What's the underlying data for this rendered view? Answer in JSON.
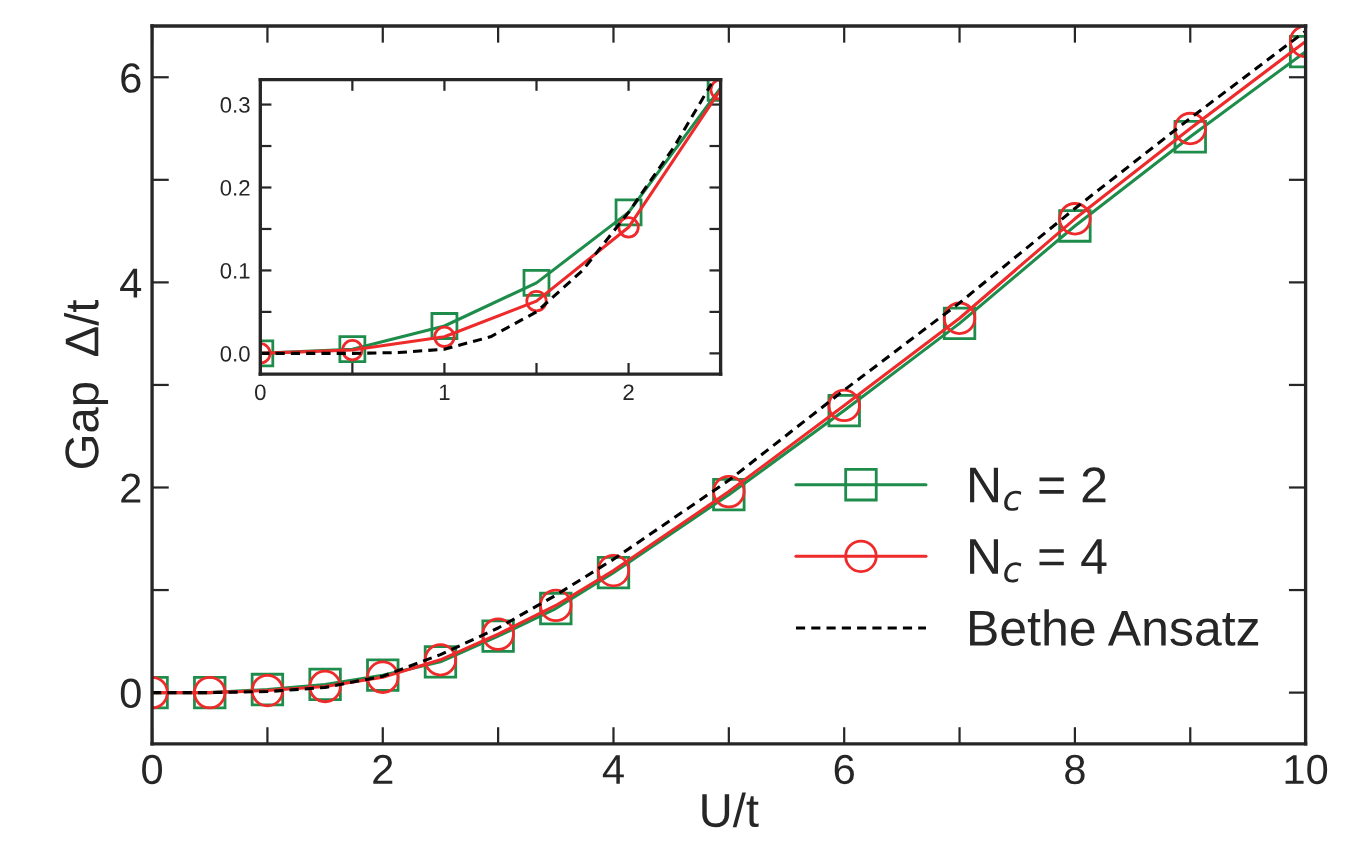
{
  "chart_data": [
    {
      "type": "line",
      "xlabel": "U/t",
      "ylabel": "Gap  Δ/t",
      "xlim": [
        0,
        10
      ],
      "ylim": [
        -0.5,
        6.5
      ],
      "xticks": [
        0,
        {
          "value": 1,
          "label": null
        },
        2,
        {
          "value": 3,
          "label": null
        },
        4,
        {
          "value": 5,
          "label": null
        },
        6,
        {
          "value": 7,
          "label": null
        },
        8,
        {
          "value": 9,
          "label": null
        },
        10
      ],
      "yticks": [
        0,
        {
          "value": 1,
          "label": null
        },
        2,
        {
          "value": 3,
          "label": null
        },
        4,
        {
          "value": 5,
          "label": null
        },
        6
      ],
      "grid": false,
      "legend": "bottom right",
      "series": [
        {
          "name": "N$_{c}$ = 2",
          "color": "#1e8c4a",
          "marker": "square",
          "line_style": "solid",
          "x": [
            0,
            0.5,
            1,
            1.5,
            2,
            2.5,
            3,
            3.5,
            4,
            5,
            6,
            7,
            8,
            9,
            10
          ],
          "values": [
            0,
            0,
            0.03,
            0.08,
            0.17,
            0.3,
            0.55,
            0.82,
            1.17,
            1.93,
            2.75,
            3.6,
            4.55,
            5.42,
            6.25
          ]
        },
        {
          "name": "N$_{c}$ = 4",
          "color": "#ee2a2a",
          "marker": "circle",
          "line_style": "solid",
          "x": [
            0,
            0.5,
            1,
            1.5,
            2,
            2.5,
            3,
            3.5,
            4,
            5,
            6,
            7,
            8,
            9,
            10
          ],
          "values": [
            0,
            0,
            0.02,
            0.06,
            0.15,
            0.32,
            0.57,
            0.85,
            1.19,
            1.96,
            2.8,
            3.65,
            4.62,
            5.5,
            6.35
          ]
        },
        {
          "name": "Bethe Ansatz",
          "color": "#000000",
          "marker": "none",
          "line_style": "dashed",
          "x": [
            0,
            0.5,
            1,
            1.5,
            2,
            2.5,
            3,
            3.5,
            4,
            5,
            6,
            7,
            8,
            9,
            10
          ],
          "values": [
            0,
            0,
            0.01,
            0.05,
            0.16,
            0.37,
            0.63,
            0.95,
            1.3,
            2.07,
            2.95,
            3.8,
            4.72,
            5.6,
            6.45
          ]
        }
      ]
    },
    {
      "type": "line",
      "xlim": [
        0,
        2.5
      ],
      "ylim": [
        -0.025,
        0.33
      ],
      "xticks": [
        0,
        {
          "value": 0.5,
          "label": null
        },
        1,
        {
          "value": 1.5,
          "label": null
        },
        2
      ],
      "yticks": [
        {
          "value": 0,
          "label": "0.0"
        },
        {
          "value": 0.05,
          "label": null
        },
        0.1,
        {
          "value": 0.15,
          "label": null
        },
        0.2,
        {
          "value": 0.25,
          "label": null
        },
        0.3
      ],
      "grid": false,
      "legend": false,
      "series": [
        {
          "color": "#1e8c4a",
          "marker": "square",
          "line_style": "solid",
          "x": [
            0,
            0.5,
            1,
            1.5,
            2,
            2.5
          ],
          "values": [
            0,
            0.005,
            0.033,
            0.085,
            0.17,
            0.32
          ]
        },
        {
          "color": "#ee2a2a",
          "marker": "circle",
          "line_style": "solid",
          "x": [
            0,
            0.5,
            1,
            1.5,
            2,
            2.5
          ],
          "values": [
            0,
            0.004,
            0.02,
            0.063,
            0.152,
            0.318
          ]
        },
        {
          "color": "#000000",
          "marker": "none",
          "line_style": "dashed",
          "x": [
            0,
            0.5,
            0.75,
            1,
            1.25,
            1.5,
            1.75,
            2,
            2.25,
            2.45
          ],
          "values": [
            0,
            0,
            0.001,
            0.005,
            0.02,
            0.05,
            0.1,
            0.17,
            0.25,
            0.325
          ]
        }
      ]
    }
  ]
}
